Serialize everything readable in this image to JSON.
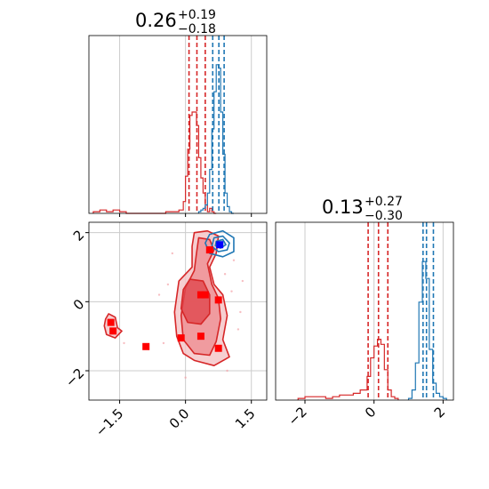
{
  "colors": {
    "red": "#d62728",
    "blue": "#1f77b4",
    "marker_blue": "#0000ff",
    "marker_red": "#ff0000",
    "grid": "#cccccc"
  },
  "chart_data": [
    {
      "type": "histogram",
      "panel": "marginal-x",
      "title": {
        "main": "0.26",
        "upper": "+0.19",
        "lower": "−0.18"
      },
      "xlim": [
        -2.2,
        1.85
      ],
      "grid_x": [
        -1.5,
        0.0,
        1.5
      ],
      "series": [
        {
          "color": "red",
          "x_edges": [
            -2.1,
            -1.95,
            -1.8,
            -1.65,
            -1.5,
            -1.35,
            -1.2,
            -1.05,
            -0.9,
            -0.75,
            -0.6,
            -0.45,
            -0.3,
            -0.15,
            -0.05,
            0.0,
            0.05,
            0.1,
            0.15,
            0.2,
            0.25,
            0.3,
            0.35,
            0.4,
            0.45,
            0.5,
            0.55,
            0.6,
            0.65,
            0.7
          ],
          "heights": [
            0.01,
            0.02,
            0.01,
            0.02,
            0.01,
            0.0,
            0.0,
            0.0,
            0.0,
            0.0,
            0.0,
            0.01,
            0.01,
            0.02,
            0.07,
            0.22,
            0.38,
            0.58,
            0.6,
            0.6,
            0.52,
            0.33,
            0.21,
            0.12,
            0.05,
            0.01,
            0.03,
            0.01,
            0.0
          ],
          "quantiles": [
            0.08,
            0.26,
            0.45
          ]
        },
        {
          "color": "blue",
          "x_edges": [
            0.3,
            0.35,
            0.4,
            0.45,
            0.5,
            0.55,
            0.6,
            0.65,
            0.7,
            0.75,
            0.8,
            0.85,
            0.9,
            0.95,
            1.0,
            1.05,
            1.1
          ],
          "heights": [
            0.01,
            0.02,
            0.03,
            0.05,
            0.12,
            0.26,
            0.5,
            0.72,
            0.88,
            0.86,
            0.6,
            0.35,
            0.12,
            0.04,
            0.01,
            0.0
          ],
          "quantiles": [
            0.62,
            0.76,
            0.88
          ]
        }
      ]
    },
    {
      "type": "histogram",
      "panel": "marginal-y",
      "title": {
        "main": "0.13",
        "upper": "+0.27",
        "lower": "−0.30"
      },
      "xlim": [
        -2.85,
        2.3
      ],
      "ticks": [
        -2,
        0,
        2
      ],
      "tick_labels": [
        "−2",
        "0",
        "2"
      ],
      "series": [
        {
          "color": "red",
          "x_edges": [
            -2.2,
            -2.0,
            -1.8,
            -1.6,
            -1.4,
            -1.2,
            -1.0,
            -0.8,
            -0.6,
            -0.4,
            -0.2,
            -0.1,
            0.0,
            0.1,
            0.2,
            0.3,
            0.4,
            0.5,
            0.6,
            0.7
          ],
          "heights": [
            0.01,
            0.02,
            0.02,
            0.02,
            0.01,
            0.02,
            0.03,
            0.03,
            0.04,
            0.06,
            0.14,
            0.25,
            0.32,
            0.36,
            0.33,
            0.18,
            0.06,
            0.02,
            0.01
          ],
          "quantiles": [
            -0.17,
            0.13,
            0.4
          ]
        },
        {
          "color": "blue",
          "x_edges": [
            1.0,
            1.1,
            1.2,
            1.3,
            1.4,
            1.5,
            1.6,
            1.7,
            1.8,
            1.9,
            2.0,
            2.1
          ],
          "heights": [
            0.01,
            0.06,
            0.22,
            0.58,
            0.82,
            0.72,
            0.3,
            0.1,
            0.04,
            0.02,
            0.01
          ],
          "quantiles": [
            1.42,
            1.52,
            1.72
          ]
        }
      ]
    },
    {
      "type": "scatter",
      "panel": "joint",
      "xlim": [
        -2.2,
        1.85
      ],
      "ylim": [
        -2.85,
        2.3
      ],
      "xticks": [
        -1.5,
        0.0,
        1.5
      ],
      "xtick_labels": [
        "−1.5",
        "0.0",
        "1.5"
      ],
      "yticks": [
        -2,
        0,
        2
      ],
      "ytick_labels": [
        "−2",
        "0",
        "2"
      ],
      "red_markers": [
        {
          "x": 0.55,
          "y": 1.5
        },
        {
          "x": 0.35,
          "y": 0.2
        },
        {
          "x": 0.45,
          "y": 0.2
        },
        {
          "x": 0.75,
          "y": 0.05
        },
        {
          "x": -1.7,
          "y": -0.6
        },
        {
          "x": -1.65,
          "y": -0.85
        },
        {
          "x": -0.9,
          "y": -1.3
        },
        {
          "x": -0.1,
          "y": -1.05
        },
        {
          "x": 0.35,
          "y": -1.0
        },
        {
          "x": 0.75,
          "y": -1.35
        }
      ],
      "blue_markers": [
        {
          "x": 0.78,
          "y": 1.65
        }
      ],
      "red_contours": [
        [
          [
            0.2,
            2.0
          ],
          [
            0.5,
            2.05
          ],
          [
            0.75,
            1.9
          ],
          [
            0.7,
            1.4
          ],
          [
            0.55,
            1.0
          ],
          [
            0.65,
            0.5
          ],
          [
            0.85,
            0.2
          ],
          [
            0.95,
            -0.4
          ],
          [
            0.85,
            -1.1
          ],
          [
            1.0,
            -1.6
          ],
          [
            0.65,
            -1.85
          ],
          [
            0.2,
            -1.7
          ],
          [
            -0.05,
            -1.5
          ],
          [
            -0.2,
            -1.0
          ],
          [
            -0.25,
            -0.3
          ],
          [
            -0.15,
            0.6
          ],
          [
            0.15,
            1.0
          ],
          [
            0.15,
            1.6
          ]
        ],
        [
          [
            0.3,
            1.85
          ],
          [
            0.55,
            1.8
          ],
          [
            0.65,
            1.5
          ],
          [
            0.5,
            1.1
          ],
          [
            0.6,
            0.5
          ],
          [
            0.75,
            0.1
          ],
          [
            0.8,
            -0.5
          ],
          [
            0.7,
            -1.15
          ],
          [
            0.55,
            -1.55
          ],
          [
            0.2,
            -1.5
          ],
          [
            -0.05,
            -1.1
          ],
          [
            -0.1,
            -0.4
          ],
          [
            0.0,
            0.4
          ],
          [
            0.2,
            0.9
          ],
          [
            0.25,
            1.4
          ]
        ],
        [
          [
            0.1,
            0.65
          ],
          [
            0.4,
            0.6
          ],
          [
            0.55,
            0.2
          ],
          [
            0.55,
            -0.35
          ],
          [
            0.35,
            -0.65
          ],
          [
            0.05,
            -0.6
          ],
          [
            -0.1,
            -0.2
          ],
          [
            -0.05,
            0.35
          ]
        ],
        [
          [
            -1.75,
            -0.35
          ],
          [
            -1.6,
            -0.45
          ],
          [
            -1.55,
            -0.75
          ],
          [
            -1.45,
            -0.85
          ],
          [
            -1.6,
            -1.05
          ],
          [
            -1.8,
            -0.95
          ],
          [
            -1.85,
            -0.7
          ],
          [
            -1.82,
            -0.5
          ]
        ]
      ],
      "blue_contours": [
        [
          [
            0.55,
            1.95
          ],
          [
            0.85,
            2.05
          ],
          [
            1.1,
            1.85
          ],
          [
            1.1,
            1.45
          ],
          [
            0.85,
            1.3
          ],
          [
            0.55,
            1.4
          ],
          [
            0.45,
            1.7
          ]
        ],
        [
          [
            0.65,
            1.85
          ],
          [
            0.85,
            1.9
          ],
          [
            1.0,
            1.7
          ],
          [
            0.95,
            1.5
          ],
          [
            0.75,
            1.45
          ],
          [
            0.6,
            1.6
          ]
        ],
        [
          [
            0.7,
            1.75
          ],
          [
            0.85,
            1.8
          ],
          [
            0.92,
            1.65
          ],
          [
            0.8,
            1.55
          ],
          [
            0.68,
            1.62
          ]
        ]
      ],
      "scatter_points_red": [
        [
          0.9,
          0.8
        ],
        [
          1.05,
          0.3
        ],
        [
          -0.4,
          0.5
        ],
        [
          1.2,
          -0.8
        ],
        [
          -0.5,
          -1.2
        ],
        [
          1.1,
          1.2
        ],
        [
          -0.3,
          1.4
        ],
        [
          0.95,
          -2.0
        ],
        [
          -1.4,
          -1.2
        ],
        [
          1.3,
          0.6
        ],
        [
          -0.6,
          0.2
        ],
        [
          0.0,
          -2.2
        ],
        [
          1.25,
          -0.3
        ]
      ]
    }
  ]
}
